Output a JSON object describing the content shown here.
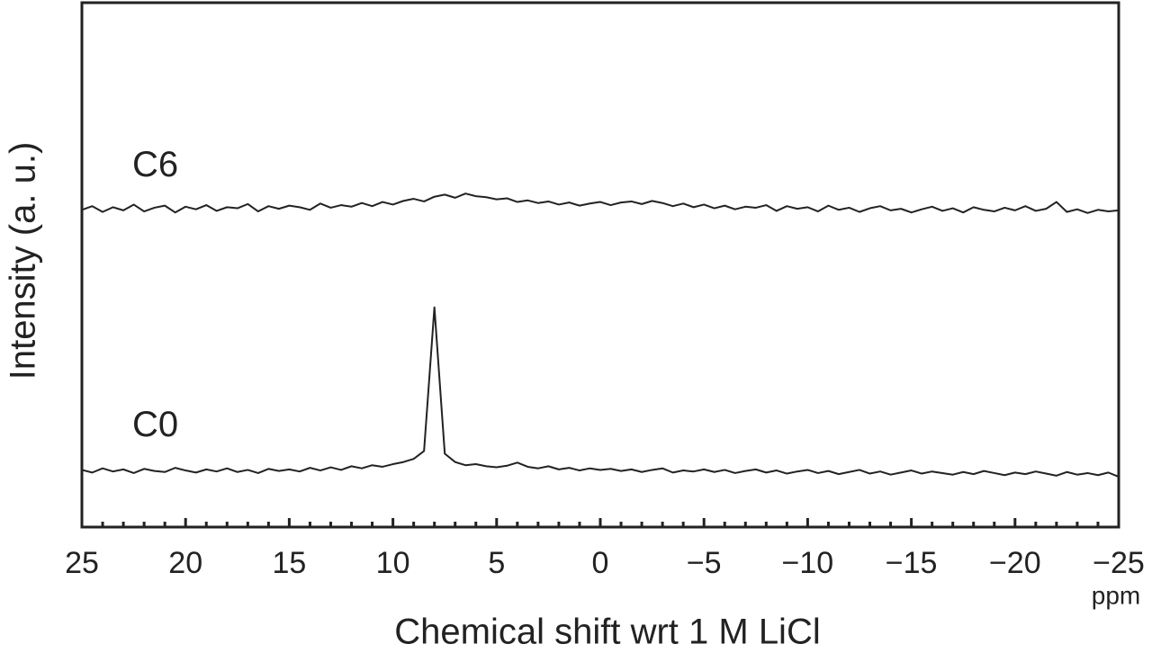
{
  "chart_data": {
    "type": "line",
    "xlabel": "Chemical shift wrt 1 M LiCl",
    "ylabel": "Intensity (a. u.)",
    "xunit": "ppm",
    "xlim": [
      25,
      -25
    ],
    "ylim": [
      0,
      100
    ],
    "xticks": [
      25,
      20,
      15,
      10,
      5,
      0,
      {
        "value": -5,
        "label": "−5"
      },
      {
        "value": -10,
        "label": "−10"
      },
      {
        "value": -15,
        "label": "−15"
      },
      {
        "value": -20,
        "label": "−20"
      },
      {
        "value": -25,
        "label": "−25"
      }
    ],
    "xticks_minor": [
      24,
      23,
      22,
      21,
      19,
      18,
      17,
      16,
      14,
      13,
      12,
      11,
      9,
      8,
      7,
      6,
      4,
      3,
      2,
      1,
      -1,
      -2,
      -3,
      -4,
      -6,
      -7,
      -8,
      -9,
      -11,
      -12,
      -13,
      -14,
      -16,
      -17,
      -18,
      -19,
      -21,
      -22,
      -23,
      -24
    ],
    "x": [
      25,
      24.5,
      24,
      23.5,
      23,
      22.5,
      22,
      21.5,
      21,
      20.5,
      20,
      19.5,
      19,
      18.5,
      18,
      17.5,
      17,
      16.5,
      16,
      15.5,
      15,
      14.5,
      14,
      13.5,
      13,
      12.5,
      12,
      11.5,
      11,
      10.5,
      10,
      9.5,
      9,
      8.5,
      8,
      7.5,
      7,
      6.5,
      6,
      5.5,
      5,
      4.5,
      4,
      3.5,
      3,
      2.5,
      2,
      1.5,
      1,
      0.5,
      0,
      -0.5,
      -1,
      -1.5,
      -2,
      -2.5,
      -3,
      -3.5,
      -4,
      -4.5,
      -5,
      -5.5,
      -6,
      -6.5,
      -7,
      -7.5,
      -8,
      -8.5,
      -9,
      -9.5,
      -10,
      -10.5,
      -11,
      -11.5,
      -12,
      -12.5,
      -13,
      -13.5,
      -14,
      -14.5,
      -15,
      -15.5,
      -16,
      -16.5,
      -17,
      -17.5,
      -18,
      -18.5,
      -19,
      -19.5,
      -20,
      -20.5,
      -21,
      -21.5,
      -22,
      -22.5,
      -23,
      -23.5,
      -24,
      -24.5,
      -25
    ],
    "series": [
      {
        "name": "C6",
        "color": "#222222",
        "values": [
          60.5,
          61.2,
          60.1,
          61.0,
          60.4,
          61.5,
          60.2,
          60.9,
          61.3,
          60.0,
          61.1,
          60.6,
          61.4,
          60.3,
          61.0,
          60.8,
          61.6,
          60.2,
          61.2,
          60.7,
          61.3,
          61.0,
          60.5,
          61.7,
          60.9,
          61.4,
          61.1,
          61.8,
          61.2,
          62.0,
          61.5,
          62.2,
          62.6,
          62.1,
          63.0,
          63.4,
          62.8,
          63.6,
          63.1,
          62.9,
          62.5,
          62.7,
          62.0,
          62.3,
          61.8,
          62.1,
          61.5,
          61.9,
          61.3,
          61.7,
          62.0,
          61.4,
          61.9,
          62.1,
          61.6,
          62.2,
          61.8,
          61.2,
          61.7,
          61.0,
          61.5,
          60.8,
          61.3,
          60.6,
          61.1,
          60.9,
          61.4,
          60.3,
          61.2,
          60.7,
          61.0,
          60.2,
          61.3,
          60.5,
          60.9,
          60.1,
          60.8,
          61.2,
          60.4,
          60.7,
          60.0,
          60.6,
          61.1,
          60.3,
          60.8,
          60.0,
          61.0,
          60.5,
          60.2,
          60.9,
          60.4,
          61.2,
          60.3,
          60.7,
          62.0,
          60.1,
          60.6,
          59.9,
          60.5,
          60.2,
          60.4
        ]
      },
      {
        "name": "C0",
        "color": "#222222",
        "values": [
          10.9,
          10.4,
          11.2,
          10.6,
          11.0,
          10.3,
          11.1,
          10.7,
          10.5,
          11.3,
          10.8,
          10.4,
          11.0,
          10.6,
          11.2,
          10.5,
          10.9,
          10.3,
          11.1,
          10.7,
          11.0,
          10.6,
          11.3,
          10.8,
          11.4,
          10.9,
          11.6,
          11.2,
          11.8,
          11.5,
          12.0,
          12.4,
          13.0,
          14.5,
          41.9,
          14.0,
          12.4,
          11.8,
          12.0,
          11.6,
          11.4,
          11.7,
          12.3,
          11.5,
          11.2,
          11.6,
          11.0,
          11.3,
          10.8,
          11.2,
          10.9,
          11.1,
          10.7,
          11.0,
          10.5,
          10.9,
          11.2,
          10.4,
          10.8,
          10.6,
          11.0,
          10.5,
          10.9,
          10.3,
          10.7,
          11.0,
          10.4,
          10.8,
          10.2,
          10.6,
          10.9,
          10.3,
          10.7,
          10.1,
          10.5,
          10.9,
          10.2,
          10.6,
          10.0,
          10.4,
          10.8,
          10.2,
          10.6,
          10.3,
          10.0,
          10.5,
          10.1,
          10.7,
          10.3,
          9.9,
          10.4,
          10.1,
          10.6,
          10.2,
          9.8,
          10.5,
          10.0,
          10.3,
          9.9,
          10.4,
          9.6
        ]
      }
    ]
  }
}
